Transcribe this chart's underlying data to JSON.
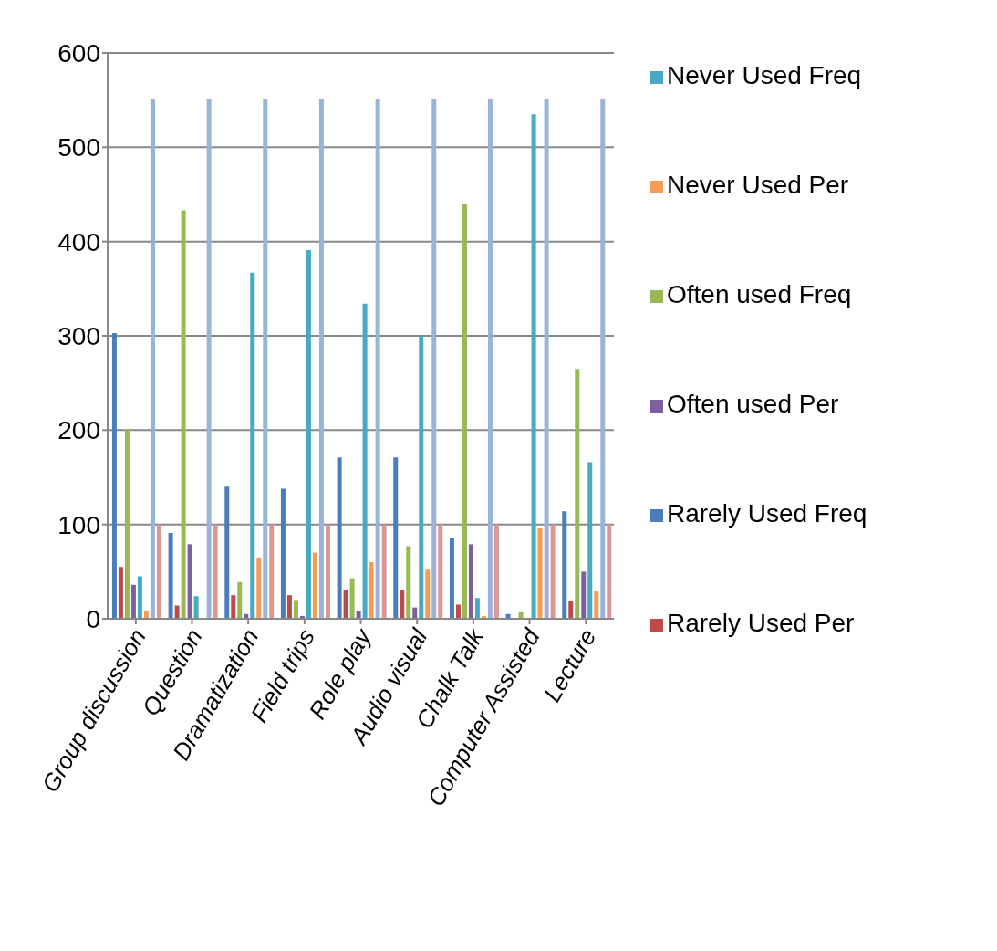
{
  "chart_data": {
    "type": "bar",
    "categories": [
      "Group discussion",
      "Question",
      "Dramatization",
      "Field trips",
      "Role play",
      "Audio visual",
      "Chalk Talk",
      "Computer Assisted",
      "Lecture"
    ],
    "series": [
      {
        "name": "Rarely  Used Freq",
        "color": "#4a7ebb",
        "values": [
          303,
          91,
          140,
          138,
          171,
          171,
          86,
          5,
          114
        ]
      },
      {
        "name": "Rarely  Used Per",
        "color": "#be4b48",
        "values": [
          55,
          14,
          25,
          25,
          31,
          31,
          15,
          0,
          19
        ]
      },
      {
        "name": "Often  used Freq",
        "color": "#98b954",
        "values": [
          200,
          433,
          39,
          20,
          43,
          77,
          440,
          7,
          265
        ]
      },
      {
        "name": "Often  used Per",
        "color": "#7d60a0",
        "values": [
          36,
          79,
          5,
          3,
          8,
          12,
          79,
          0,
          50
        ]
      },
      {
        "name": "Never Used Freq",
        "color": "#46aac5",
        "values": [
          45,
          24,
          367,
          391,
          334,
          300,
          22,
          535,
          166
        ]
      },
      {
        "name": "Never Used Per",
        "color": "#f59d56",
        "values": [
          8,
          0,
          65,
          70,
          60,
          53,
          3,
          96,
          29
        ]
      },
      {
        "color": "#9bb3d9",
        "values": [
          551,
          551,
          551,
          551,
          551,
          551,
          551,
          551,
          551
        ]
      },
      {
        "color": "#d99795",
        "values": [
          100,
          100,
          100,
          100,
          100,
          100,
          100,
          100,
          100
        ]
      }
    ],
    "ylim": [
      0,
      600
    ],
    "yticks": [
      0,
      100,
      200,
      300,
      400,
      500,
      600
    ],
    "grid": "y",
    "legend": "right"
  }
}
